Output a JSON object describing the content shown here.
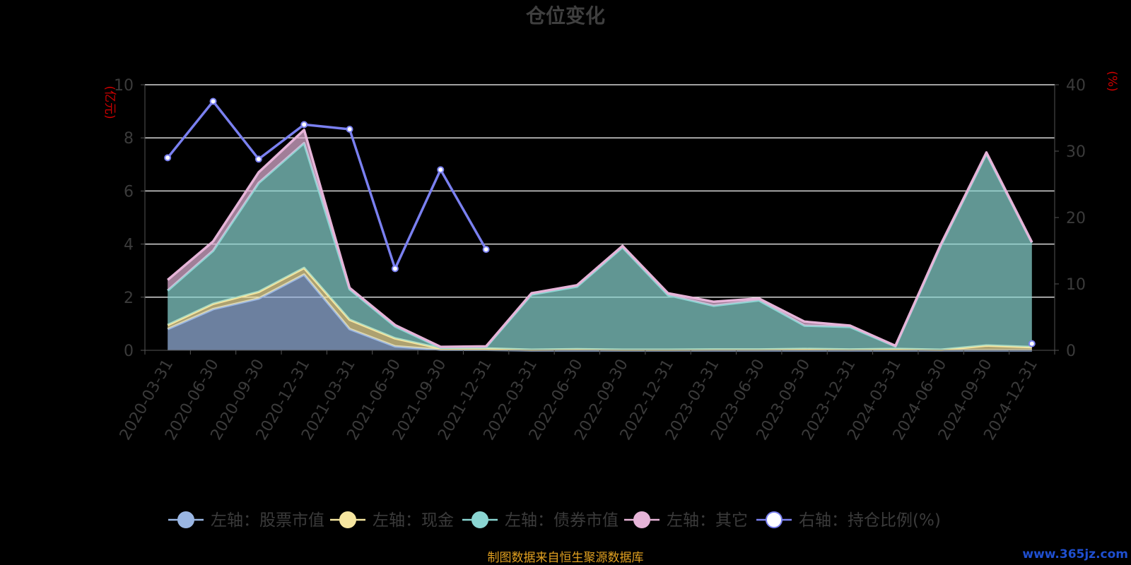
{
  "title": "仓位变化",
  "source_note": "制图数据来自恒生聚源数据库",
  "watermark": "www.365jz.com",
  "chart_data": {
    "type": "area",
    "title": "仓位变化",
    "x": [
      "2020-03-31",
      "2020-06-30",
      "2020-09-30",
      "2020-12-31",
      "2021-03-31",
      "2021-06-30",
      "2021-09-30",
      "2021-12-31",
      "2022-03-31",
      "2022-06-30",
      "2022-09-30",
      "2022-12-31",
      "2023-03-31",
      "2023-06-30",
      "2023-09-30",
      "2023-12-31",
      "2024-03-31",
      "2024-06-30",
      "2024-09-30",
      "2024-12-31"
    ],
    "left_axis": {
      "unit_label": "(亿元)",
      "ylim": [
        0,
        10
      ],
      "ticks": [
        0,
        2,
        4,
        6,
        8,
        10
      ]
    },
    "right_axis": {
      "unit_label": "(%)",
      "ylim": [
        0,
        40
      ],
      "ticks": [
        0,
        10,
        20,
        30,
        40
      ]
    },
    "stacked": true,
    "series": [
      {
        "name": "左轴：股票市值",
        "axis": "left",
        "color": "#9ab6e3",
        "values": [
          0.8,
          1.55,
          1.95,
          2.85,
          0.8,
          0.15,
          0.02,
          0.02,
          0,
          0,
          0,
          0,
          0,
          0,
          0,
          0,
          0,
          0,
          0,
          0
        ]
      },
      {
        "name": "左轴：现金",
        "axis": "left",
        "color": "#f6e6a0",
        "values": [
          0.15,
          0.2,
          0.25,
          0.25,
          0.35,
          0.3,
          0.05,
          0.05,
          0.02,
          0.04,
          0.02,
          0.02,
          0.03,
          0.03,
          0.05,
          0.03,
          0.05,
          0.02,
          0.18,
          0.12
        ]
      },
      {
        "name": "左轴：债券市值",
        "axis": "left",
        "color": "#8ad5d2",
        "values": [
          1.3,
          2.0,
          4.1,
          4.7,
          1.15,
          0.45,
          0.03,
          0.05,
          2.08,
          2.36,
          3.86,
          2.06,
          1.65,
          1.85,
          0.88,
          0.85,
          0.1,
          3.93,
          7.22,
          3.93
        ]
      },
      {
        "name": "左轴：其它",
        "axis": "left",
        "color": "#e6b4d8",
        "values": [
          0.4,
          0.35,
          0.4,
          0.5,
          0.05,
          0.05,
          0.03,
          0.03,
          0.05,
          0.05,
          0.05,
          0.07,
          0.15,
          0.07,
          0.15,
          0.05,
          0.02,
          0.05,
          0.05,
          0.02
        ]
      },
      {
        "name": "右轴：持仓比例(%)",
        "axis": "right",
        "color": "#7a80f0",
        "type": "line",
        "values": [
          29,
          37.5,
          28.8,
          34,
          33.3,
          12.3,
          27.2,
          15.2,
          null,
          null,
          null,
          null,
          null,
          null,
          null,
          null,
          null,
          null,
          null,
          1
        ]
      }
    ],
    "legend_position": "bottom",
    "grid": true
  }
}
